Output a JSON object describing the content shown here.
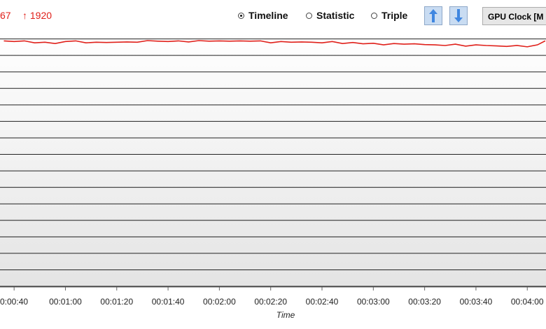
{
  "header": {
    "min_label": "67",
    "max_label": "↑ 1920"
  },
  "view_options": [
    {
      "label": "Timeline",
      "selected": true
    },
    {
      "label": "Statistic",
      "selected": false
    },
    {
      "label": "Triple",
      "selected": false
    }
  ],
  "metric_button": "GPU Clock [M",
  "chart_data": {
    "type": "line",
    "x_label": "Time",
    "xlim": [
      34.5,
      247.3
    ],
    "ylim": [
      0,
      2000
    ],
    "xticks": [
      {
        "value": 40,
        "label": "0:00:40"
      },
      {
        "value": 60,
        "label": "00:01:00"
      },
      {
        "value": 80,
        "label": "00:01:20"
      },
      {
        "value": 100,
        "label": "00:01:40"
      },
      {
        "value": 120,
        "label": "00:02:00"
      },
      {
        "value": 140,
        "label": "00:02:20"
      },
      {
        "value": 160,
        "label": "00:02:40"
      },
      {
        "value": 180,
        "label": "00:03:00"
      },
      {
        "value": 200,
        "label": "00:03:20"
      },
      {
        "value": 220,
        "label": "00:03:40"
      },
      {
        "value": 240,
        "label": "00:04:00"
      }
    ],
    "yticks": [
      0,
      125,
      250,
      375,
      500,
      625,
      750,
      875,
      1000,
      1125,
      1250,
      1375,
      1500,
      1625,
      1750,
      1875
    ],
    "grid": true,
    "x": [
      36,
      40,
      44,
      48,
      52,
      56,
      60,
      64,
      68,
      72,
      76,
      80,
      84,
      88,
      92,
      96,
      100,
      104,
      108,
      112,
      116,
      120,
      124,
      128,
      132,
      136,
      140,
      144,
      148,
      152,
      156,
      160,
      164,
      168,
      172,
      176,
      180,
      184,
      188,
      192,
      196,
      200,
      204,
      208,
      212,
      216,
      220,
      224,
      228,
      232,
      236,
      240,
      244,
      247
    ],
    "series": [
      {
        "color": "#e0201a",
        "values": [
          1860,
          1855,
          1860,
          1845,
          1850,
          1840,
          1855,
          1860,
          1845,
          1850,
          1848,
          1850,
          1852,
          1850,
          1862,
          1858,
          1855,
          1860,
          1852,
          1862,
          1858,
          1860,
          1858,
          1860,
          1858,
          1860,
          1845,
          1855,
          1850,
          1852,
          1850,
          1845,
          1855,
          1840,
          1848,
          1838,
          1842,
          1830,
          1840,
          1835,
          1838,
          1832,
          1830,
          1825,
          1835,
          1820,
          1830,
          1825,
          1822,
          1818,
          1825,
          1815,
          1830,
          1860
        ]
      }
    ]
  }
}
